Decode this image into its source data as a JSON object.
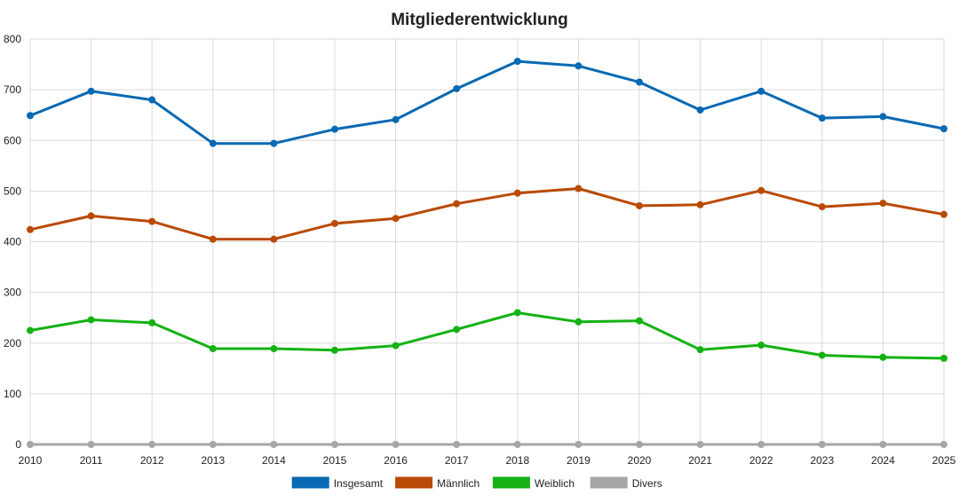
{
  "chart_data": {
    "type": "line",
    "title": "Mitgliederentwicklung",
    "x": [
      "2010",
      "2011",
      "2012",
      "2013",
      "2014",
      "2015",
      "2016",
      "2017",
      "2018",
      "2019",
      "2020",
      "2021",
      "2022",
      "2023",
      "2024",
      "2025"
    ],
    "ylim": [
      0,
      800
    ],
    "yticks": [
      0,
      100,
      200,
      300,
      400,
      500,
      600,
      700,
      800
    ],
    "grid": true,
    "legend_position": "bottom",
    "series": [
      {
        "name": "Insgesamt",
        "color": "#0869b3",
        "values": [
          649,
          697,
          680,
          594,
          594,
          622,
          641,
          702,
          756,
          747,
          715,
          660,
          697,
          644,
          647,
          623
        ]
      },
      {
        "name": "Männlich",
        "color": "#b94a05",
        "values": [
          424,
          451,
          440,
          405,
          405,
          436,
          446,
          475,
          496,
          505,
          471,
          473,
          501,
          469,
          476,
          454
        ]
      },
      {
        "name": "Weiblich",
        "color": "#14b214",
        "values": [
          225,
          246,
          240,
          189,
          189,
          186,
          195,
          227,
          260,
          242,
          244,
          187,
          196,
          176,
          172,
          170
        ]
      },
      {
        "name": "Divers",
        "color": "#a6a6a6",
        "values": [
          0,
          0,
          0,
          0,
          0,
          0,
          0,
          0,
          0,
          0,
          0,
          0,
          0,
          0,
          0,
          0
        ]
      }
    ]
  }
}
